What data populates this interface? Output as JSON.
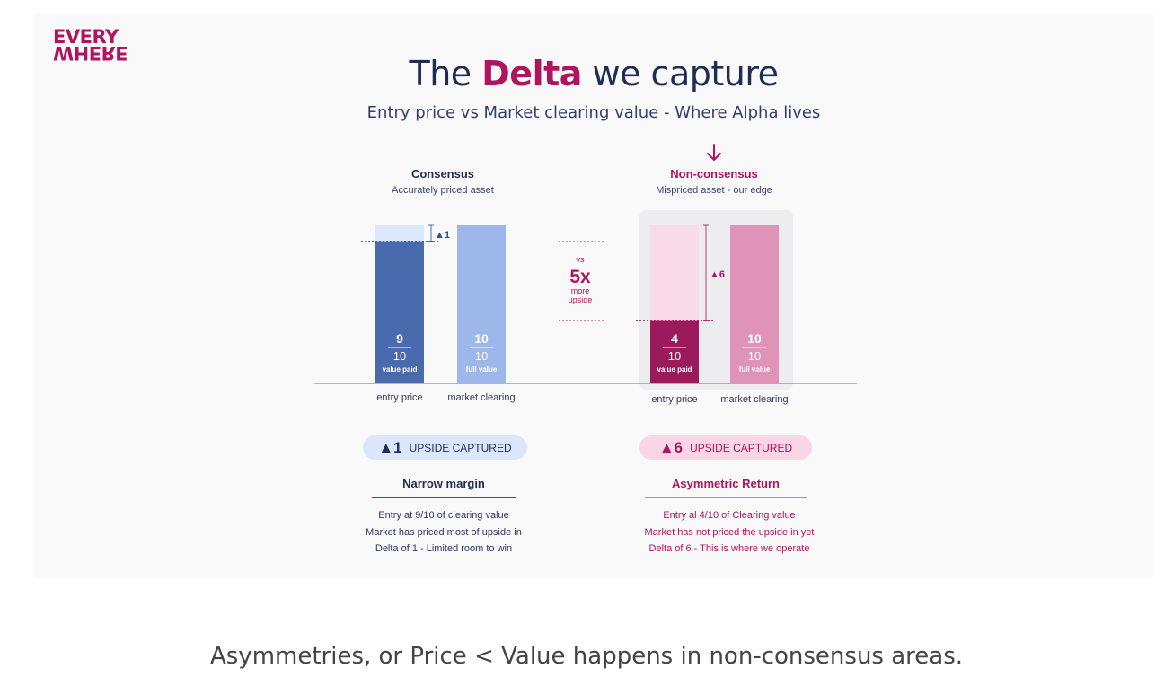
{
  "logo": {
    "line1": "EVERY",
    "line2": "WHERE"
  },
  "slide": {
    "title_before": "The",
    "title_highlight": "Delta",
    "title_after": "we capture",
    "subtitle": "Entry price vs Market clearing value - Where Alpha lives"
  },
  "colors": {
    "navy": "#1f2d55",
    "magenta": "#b0145c",
    "consensus_entry": "#4a6aae",
    "consensus_market": "#9db7ea",
    "consensus_gap": "#dce8fb",
    "nonconsensus_entry": "#9a1a5c",
    "nonconsensus_market": "#e093b8",
    "nonconsensus_gap": "#f9dbea"
  },
  "chart_data": [
    {
      "type": "bar",
      "title": "Consensus",
      "subtitle": "Accurately priced asset",
      "categories": [
        "entry price",
        "market clearing"
      ],
      "values": [
        9,
        10
      ],
      "denominator": 10,
      "bar_labels": [
        "value paid",
        "full value"
      ],
      "delta_label": "▲1",
      "ylim": [
        0,
        10
      ]
    },
    {
      "type": "bar",
      "title": "Non-consensus",
      "subtitle": "Mispriced asset - our  edge",
      "categories": [
        "entry price",
        "market clearing"
      ],
      "values": [
        4,
        10
      ],
      "denominator": 10,
      "bar_labels": [
        "value paid",
        "full value"
      ],
      "delta_label": "▲6",
      "ylim": [
        0,
        10
      ]
    }
  ],
  "comparison": {
    "vs": "vs",
    "multiple": "5x",
    "line1": "more",
    "line2": "upside"
  },
  "left_panel": {
    "pill_number": "▲1",
    "pill_text": "UPSIDE CAPTURED",
    "heading": "Narrow margin",
    "lines": [
      "Entry at 9/10 of clearing value",
      "Market has priced most of upside in",
      "Delta of 1 - Limited room to win"
    ]
  },
  "right_panel": {
    "pill_number": "▲6",
    "pill_text": "UPSIDE CAPTURED",
    "heading": "Asymmetric Return",
    "lines": [
      "Entry al 4/10 of Clearing value",
      "Market has not priced the upside in yet",
      "Delta of 6 - This is where we operate"
    ]
  },
  "caption": "Asymmetries, or Price < Value happens in non-consensus areas."
}
